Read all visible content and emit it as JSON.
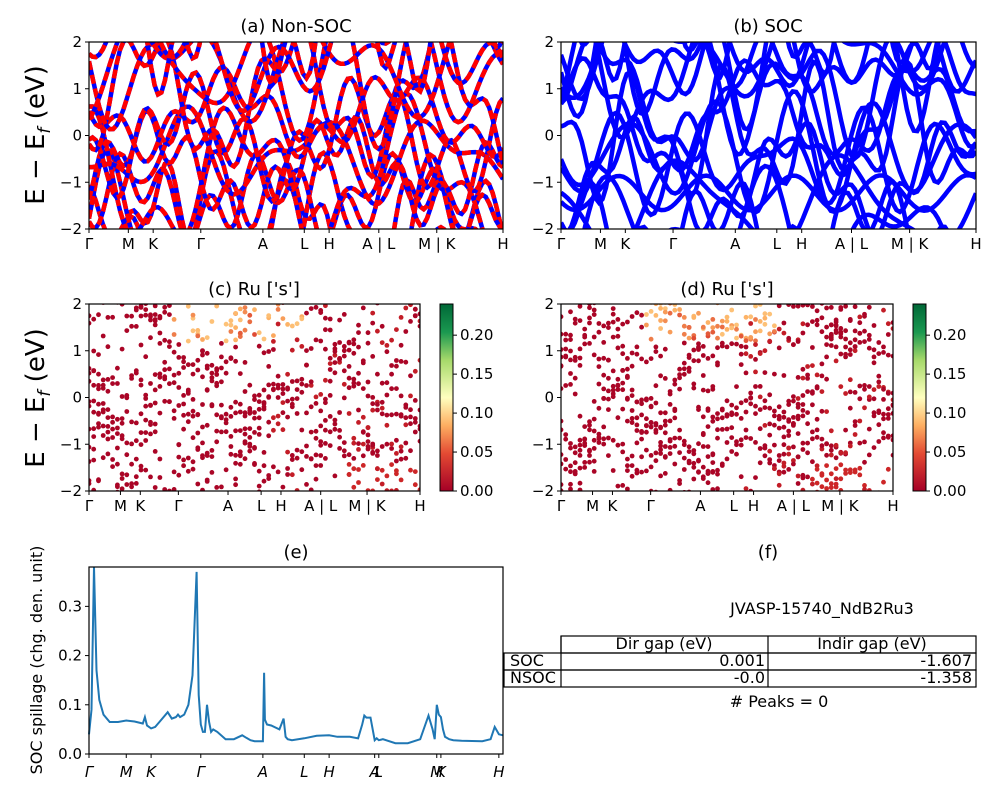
{
  "chart_data": [
    {
      "panel": "a",
      "type": "line",
      "title": "(a) Non-SOC",
      "ylabel": "E − E_f (eV)",
      "ylim": [
        -2,
        2
      ],
      "yticks": [
        "−2",
        "−1",
        "0",
        "1",
        "2"
      ],
      "xtick_labels": [
        "Γ",
        "M",
        "K",
        "Γ",
        "A",
        "L",
        "H",
        "A | L",
        "M | K",
        "H"
      ],
      "colors": {
        "up": "#0000ff",
        "down": "#ff0000"
      },
      "style": "red dashed bands overlaid on blue bands"
    },
    {
      "panel": "b",
      "type": "line",
      "title": "(b) SOC",
      "ylim": [
        -2,
        2
      ],
      "yticks": [
        "−2",
        "−1",
        "0",
        "1",
        "2"
      ],
      "xtick_labels": [
        "Γ",
        "M",
        "K",
        "Γ",
        "A",
        "L",
        "H",
        "A | L",
        "M | K",
        "H"
      ],
      "colors": {
        "bands": "#0000ff"
      }
    },
    {
      "panel": "c",
      "type": "scatter",
      "title": "(c)  Ru ['s']",
      "ylabel": "E − E_f (eV)",
      "ylim": [
        -2,
        2
      ],
      "yticks": [
        "−2",
        "−1",
        "0",
        "1",
        "2"
      ],
      "xtick_labels": [
        "Γ",
        "M",
        "K",
        "Γ",
        "A",
        "L",
        "H",
        "A | L",
        "M | K",
        "H"
      ],
      "colorbar": {
        "range": [
          0,
          0.24
        ],
        "ticks": [
          "0.00",
          "0.05",
          "0.10",
          "0.15",
          "0.20"
        ],
        "colormap": "RdYlGn"
      }
    },
    {
      "panel": "d",
      "type": "scatter",
      "title": "(d) Ru ['s']",
      "ylim": [
        -2,
        2
      ],
      "yticks": [
        "−2",
        "−1",
        "0",
        "1",
        "2"
      ],
      "xtick_labels": [
        "Γ",
        "M",
        "K",
        "Γ",
        "A",
        "L",
        "H",
        "A | L",
        "M | K",
        "H"
      ],
      "colorbar": {
        "range": [
          0,
          0.24
        ],
        "ticks": [
          "0.00",
          "0.05",
          "0.10",
          "0.15",
          "0.20"
        ],
        "colormap": "RdYlGn"
      }
    },
    {
      "panel": "e",
      "type": "line",
      "title": "(e)",
      "ylabel": "SOC spillage (chg. den. unit)",
      "ylim": [
        0,
        0.38
      ],
      "yticks": [
        "0.0",
        "0.1",
        "0.2",
        "0.3"
      ],
      "xtick_labels": [
        "Γ",
        "M",
        "K",
        "Γ",
        "A",
        "L",
        "H",
        "A",
        "L",
        "M",
        "K",
        "H"
      ],
      "xtick_positions": [
        0,
        0.09,
        0.15,
        0.27,
        0.42,
        0.52,
        0.58,
        0.69,
        0.7,
        0.84,
        0.85,
        0.99
      ],
      "x": [
        0,
        0.006,
        0.012,
        0.018,
        0.025,
        0.035,
        0.05,
        0.07,
        0.09,
        0.11,
        0.13,
        0.135,
        0.14,
        0.15,
        0.16,
        0.17,
        0.19,
        0.2,
        0.21,
        0.215,
        0.22,
        0.23,
        0.24,
        0.25,
        0.26,
        0.265,
        0.27,
        0.275,
        0.28,
        0.285,
        0.29,
        0.295,
        0.3,
        0.31,
        0.33,
        0.35,
        0.37,
        0.38,
        0.39,
        0.4,
        0.41,
        0.42,
        0.423,
        0.425,
        0.43,
        0.44,
        0.46,
        0.47,
        0.475,
        0.48,
        0.49,
        0.52,
        0.55,
        0.58,
        0.6,
        0.63,
        0.65,
        0.66,
        0.665,
        0.67,
        0.68,
        0.69,
        0.695,
        0.7,
        0.71,
        0.74,
        0.77,
        0.8,
        0.82,
        0.83,
        0.835,
        0.84,
        0.845,
        0.85,
        0.855,
        0.86,
        0.87,
        0.88,
        0.9,
        0.95,
        0.97,
        0.98,
        0.99,
        1.0
      ],
      "y": [
        0.04,
        0.09,
        0.38,
        0.17,
        0.11,
        0.08,
        0.065,
        0.065,
        0.068,
        0.066,
        0.062,
        0.075,
        0.058,
        0.052,
        0.055,
        0.065,
        0.085,
        0.072,
        0.075,
        0.08,
        0.075,
        0.08,
        0.1,
        0.16,
        0.37,
        0.12,
        0.06,
        0.045,
        0.045,
        0.1,
        0.065,
        0.045,
        0.05,
        0.045,
        0.03,
        0.03,
        0.038,
        0.033,
        0.028,
        0.026,
        0.026,
        0.026,
        0.165,
        0.07,
        0.06,
        0.058,
        0.05,
        0.072,
        0.035,
        0.03,
        0.028,
        0.032,
        0.037,
        0.038,
        0.035,
        0.035,
        0.032,
        0.06,
        0.078,
        0.074,
        0.074,
        0.028,
        0.032,
        0.028,
        0.03,
        0.022,
        0.022,
        0.03,
        0.078,
        0.05,
        0.03,
        0.1,
        0.08,
        0.075,
        0.05,
        0.035,
        0.03,
        0.028,
        0.027,
        0.026,
        0.03,
        0.055,
        0.04,
        0.038
      ],
      "colors": {
        "line": "#1f77b4"
      }
    },
    {
      "panel": "f",
      "type": "table",
      "title": "(f)",
      "subtitle": "JVASP-15740_NdB2Ru3",
      "columns": [
        "",
        "Dir gap (eV)",
        "Indir gap (eV)"
      ],
      "rows": [
        {
          "label": "SOC",
          "dir": "0.001",
          "indir": "-1.607"
        },
        {
          "label": "NSOC",
          "dir": "-0.0",
          "indir": "-1.358"
        }
      ],
      "footer": "# Peaks = 0"
    }
  ]
}
